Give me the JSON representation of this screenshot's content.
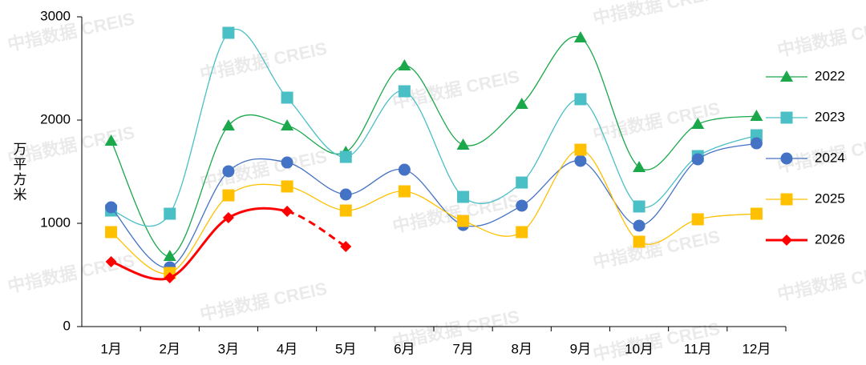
{
  "chart_data": {
    "type": "line",
    "y_label": "万平方米",
    "watermark": "中指数据 CREIS",
    "categories": [
      "1月",
      "2月",
      "3月",
      "4月",
      "5月",
      "6月",
      "7月",
      "8月",
      "9月",
      "10月",
      "11月",
      "12月"
    ],
    "ylim": [
      0,
      3000
    ],
    "yticks": [
      0,
      1000,
      2000,
      3000
    ],
    "grid": false,
    "smooth": true,
    "legend": "right",
    "series": [
      {
        "name": "2022",
        "color": "#1aa84b",
        "marker": "triangle",
        "values": [
          1798,
          682,
          1946,
          1946,
          1690,
          2527,
          1760,
          2155,
          2798,
          1543,
          1961,
          2039
        ]
      },
      {
        "name": "2023",
        "color": "#4bbfc6",
        "marker": "square",
        "values": [
          1124,
          1093,
          2845,
          2217,
          1643,
          2279,
          1256,
          1395,
          2202,
          1163,
          1651,
          1853
        ]
      },
      {
        "name": "2024",
        "color": "#4472c4",
        "marker": "circle",
        "values": [
          1155,
          574,
          1504,
          1589,
          1279,
          1519,
          984,
          1171,
          1605,
          977,
          1620,
          1775
        ]
      },
      {
        "name": "2025",
        "color": "#ffc000",
        "marker": "square",
        "values": [
          915,
          519,
          1271,
          1357,
          1124,
          1310,
          1023,
          915,
          1713,
          822,
          1039,
          1093
        ]
      },
      {
        "name": "2026",
        "color": "#ff0000",
        "marker": "diamond",
        "width": 3,
        "dashed_from_index": 3,
        "values": [
          628,
          473,
          1054,
          1116,
          775,
          null,
          null,
          null,
          null,
          null,
          null,
          null
        ]
      }
    ]
  }
}
